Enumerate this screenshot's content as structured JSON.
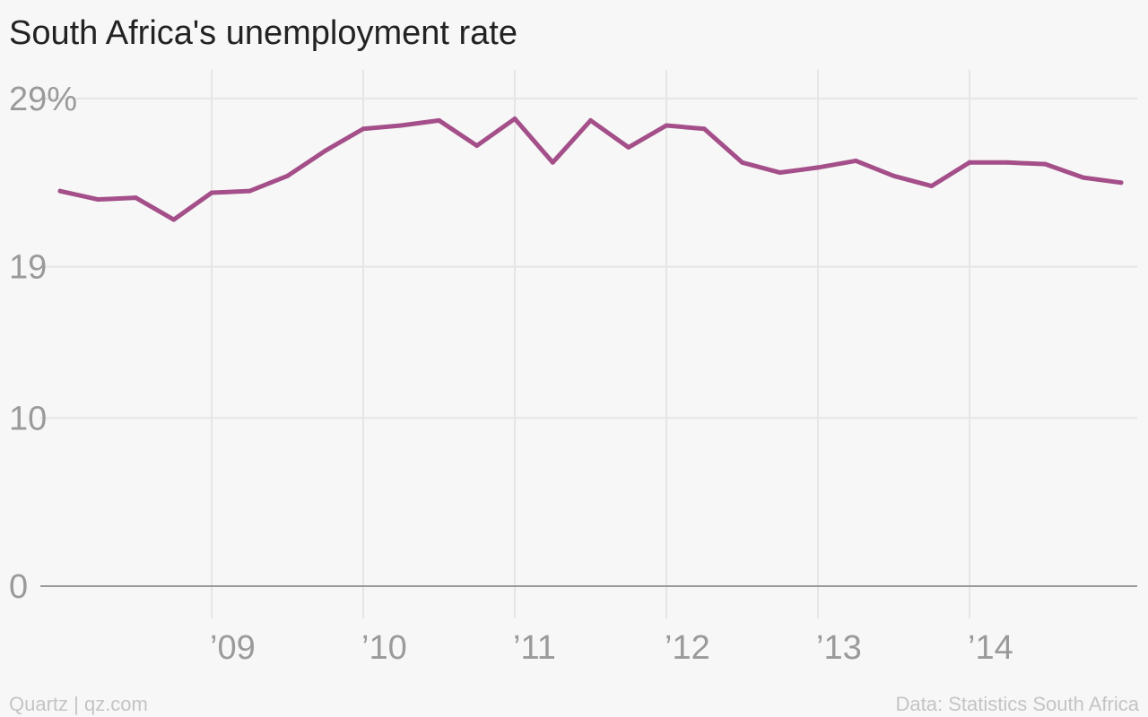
{
  "chart_data": {
    "type": "line",
    "title": "South Africa's unemployment rate",
    "source_left": "Quartz | qz.com",
    "source_right": "Data: Statistics South Africa",
    "y_ticks": [
      {
        "value": 29,
        "label": "29%"
      },
      {
        "value": 19,
        "label": "19"
      },
      {
        "value": 10,
        "label": "10"
      },
      {
        "value": 0,
        "label": "0"
      }
    ],
    "x_ticks": [
      {
        "value": 2009,
        "label": "’09"
      },
      {
        "value": 2010,
        "label": "’10"
      },
      {
        "value": 2011,
        "label": "’11"
      },
      {
        "value": 2012,
        "label": "’12"
      },
      {
        "value": 2013,
        "label": "’13"
      },
      {
        "value": 2014,
        "label": "’14"
      }
    ],
    "xlim": [
      2007.65,
      2014.97
    ],
    "ylim": [
      0,
      29
    ],
    "grid": true,
    "line_color": "#a44f89",
    "series": [
      {
        "x": [
          2008.0,
          2008.25,
          2008.5,
          2008.75,
          2009.0,
          2009.25,
          2009.5,
          2009.75,
          2010.0,
          2010.25,
          2010.5,
          2010.75,
          2011.0,
          2011.25,
          2011.5,
          2011.75,
          2012.0,
          2012.25,
          2012.5,
          2012.75,
          2013.0,
          2013.25,
          2013.5,
          2013.75,
          2014.0,
          2014.25,
          2014.5,
          2014.75,
          2015.0
        ],
        "values": [
          23.5,
          23.0,
          23.1,
          21.8,
          23.4,
          23.5,
          24.4,
          25.9,
          27.2,
          27.4,
          27.7,
          26.2,
          27.8,
          25.2,
          27.7,
          26.1,
          27.4,
          27.2,
          25.2,
          24.6,
          24.9,
          25.3,
          24.4,
          23.8,
          25.2,
          25.2,
          25.1,
          24.3,
          24.0
        ]
      }
    ]
  }
}
